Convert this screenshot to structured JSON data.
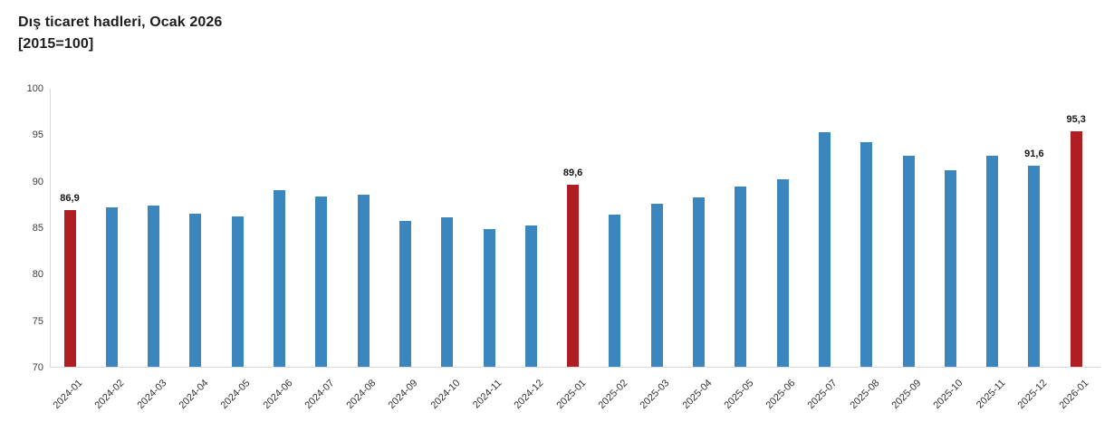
{
  "chart_data": {
    "type": "bar",
    "title": "Dış ticaret hadleri, Ocak 2026",
    "subtitle": "[2015=100]",
    "xlabel": "",
    "ylabel": "",
    "ylim": [
      70,
      100
    ],
    "yticks": [
      70,
      75,
      80,
      85,
      90,
      95,
      100
    ],
    "grid": false,
    "legend": false,
    "decimal_separator": ",",
    "categories": [
      "2024-01",
      "2024-02",
      "2024-03",
      "2024-04",
      "2024-05",
      "2024-06",
      "2024-07",
      "2024-08",
      "2024-09",
      "2024-10",
      "2024-11",
      "2024-12",
      "2025-01",
      "2025-02",
      "2025-03",
      "2025-04",
      "2025-05",
      "2025-06",
      "2025-07",
      "2025-08",
      "2025-09",
      "2025-10",
      "2025-11",
      "2025-12",
      "2026-01"
    ],
    "values": [
      86.9,
      87.1,
      87.3,
      86.5,
      86.2,
      89.0,
      88.3,
      88.5,
      85.7,
      86.1,
      84.8,
      85.2,
      89.6,
      86.4,
      87.5,
      88.2,
      89.4,
      90.2,
      95.2,
      94.2,
      92.7,
      91.1,
      92.7,
      91.6,
      95.3
    ],
    "highlighted_categories": [
      "2024-01",
      "2025-01",
      "2026-01"
    ],
    "data_labels": [
      {
        "category": "2024-01",
        "text": "86,9"
      },
      {
        "category": "2025-01",
        "text": "89,6"
      },
      {
        "category": "2025-12",
        "text": "91,6"
      },
      {
        "category": "2026-01",
        "text": "95,3"
      }
    ]
  },
  "colors": {
    "bar_default": "#3c86c0",
    "bar_highlight": "#b01e23",
    "axis_line": "#d9d9d9",
    "tick_text": "#3c3c3c",
    "title_text": "#1d1d1f",
    "label_text": "#161616",
    "background": "#ffffff"
  }
}
